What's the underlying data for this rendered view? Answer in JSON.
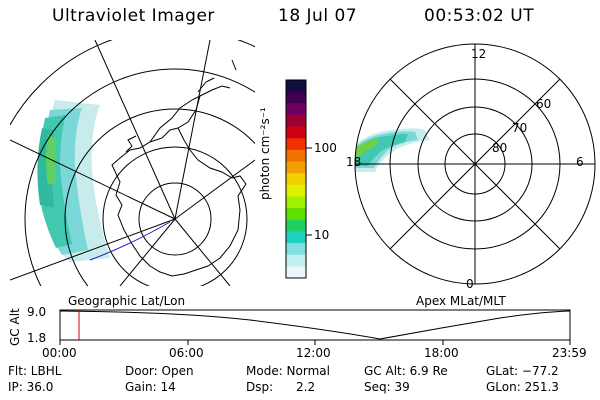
{
  "header": {
    "title": "Ultraviolet Imager",
    "date": "18 Jul 07",
    "time": "00:53:02 UT"
  },
  "colorbar": {
    "label": "photon cm⁻²s⁻¹",
    "ticks": [
      "100",
      "10"
    ],
    "scale": "log",
    "colors_top_to_bottom": [
      "#101040",
      "#400050",
      "#700060",
      "#a00030",
      "#d00010",
      "#f03000",
      "#f07000",
      "#f0a000",
      "#f0d000",
      "#e0f000",
      "#a0f000",
      "#60e000",
      "#20d060",
      "#20d0c0",
      "#80e0e0",
      "#c0f0f0",
      "#e8f8f8"
    ]
  },
  "left_panel": {
    "caption": "Geographic Lat/Lon"
  },
  "right_panel": {
    "caption": "Apex MLat/MLT",
    "lat_labels": [
      "60",
      "70",
      "80"
    ],
    "mlt_labels": {
      "top": "12",
      "left": "18",
      "right": "6",
      "bottom": "0"
    }
  },
  "altitude_plot": {
    "ylabel": "GC Alt",
    "yticks": [
      "9.0",
      "1.8"
    ],
    "xticks": [
      "00:00",
      "06:00",
      "12:00",
      "18:00",
      "23:59"
    ],
    "marker_time": "00:53",
    "marker_color": "#d00000"
  },
  "info": {
    "flt": "Flt: LBHL",
    "ip": "IP: 36.0",
    "door": "Door: Open",
    "gain": "Gain: 14",
    "mode": "Mode: Normal",
    "dsp": "Dsp:      2.2",
    "gcalt": "GC Alt: 6.9 Re",
    "seq": "Seq: 39",
    "glat": "GLat: −77.2",
    "glon": "GLon: 251.3"
  }
}
